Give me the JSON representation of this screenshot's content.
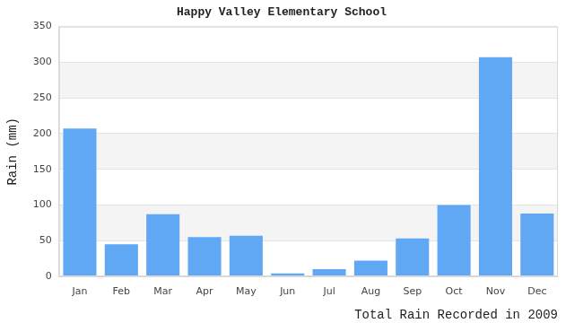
{
  "chart_data": {
    "type": "bar",
    "title": "Happy Valley Elementary School",
    "y_label": "Rain (mm)",
    "x_label": "Total Rain Recorded in 2009",
    "categories": [
      "Jan",
      "Feb",
      "Mar",
      "Apr",
      "May",
      "Jun",
      "Jul",
      "Aug",
      "Sep",
      "Oct",
      "Nov",
      "Dec"
    ],
    "values": [
      207,
      45,
      87,
      55,
      57,
      4,
      10,
      22,
      53,
      100,
      307,
      88
    ],
    "color": "#60a8f4",
    "ylim": [
      0,
      350
    ],
    "yticks": [
      0,
      50,
      100,
      150,
      200,
      250,
      300,
      350
    ],
    "grid": true
  }
}
